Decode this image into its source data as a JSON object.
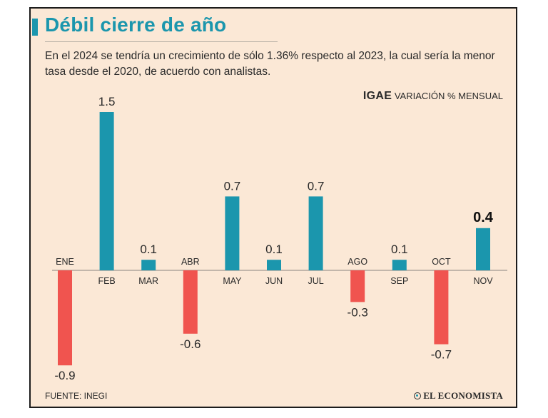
{
  "header": {
    "title": "Débil cierre de año",
    "subtitle": "En el 2024 se tendría un crecimiento de sólo 1.36% respecto al 2023, la cual sería la menor tasa desde el 2020, de acuerdo con analistas."
  },
  "series_label": {
    "strong": "IGAE",
    "rest": "VARIACIÓN % MENSUAL"
  },
  "footer": {
    "source": "FUENTE: INEGI",
    "brand": "EL ECONOMISTA"
  },
  "colors": {
    "positive": "#1b96ad",
    "negative": "#f0544f",
    "title": "#1b96ad",
    "background": "#fbe8d6"
  },
  "chart_data": {
    "type": "bar",
    "title": "IGAE VARIACIÓN % MENSUAL",
    "categories": [
      "ENE",
      "FEB",
      "MAR",
      "ABR",
      "MAY",
      "JUN",
      "JUL",
      "AGO",
      "SEP",
      "OCT",
      "NOV"
    ],
    "values": [
      -0.9,
      1.5,
      0.1,
      -0.6,
      0.7,
      0.1,
      0.7,
      -0.3,
      0.1,
      -0.7,
      0.4
    ],
    "value_labels": [
      "-0.9",
      "1.5",
      "0.1",
      "-0.6",
      "0.7",
      "0.1",
      "0.7",
      "-0.3",
      "0.1",
      "-0.7",
      "0.4"
    ],
    "highlight_index": 10,
    "xlabel": "",
    "ylabel": "",
    "ylim": [
      -0.9,
      1.5
    ],
    "grid": false
  }
}
